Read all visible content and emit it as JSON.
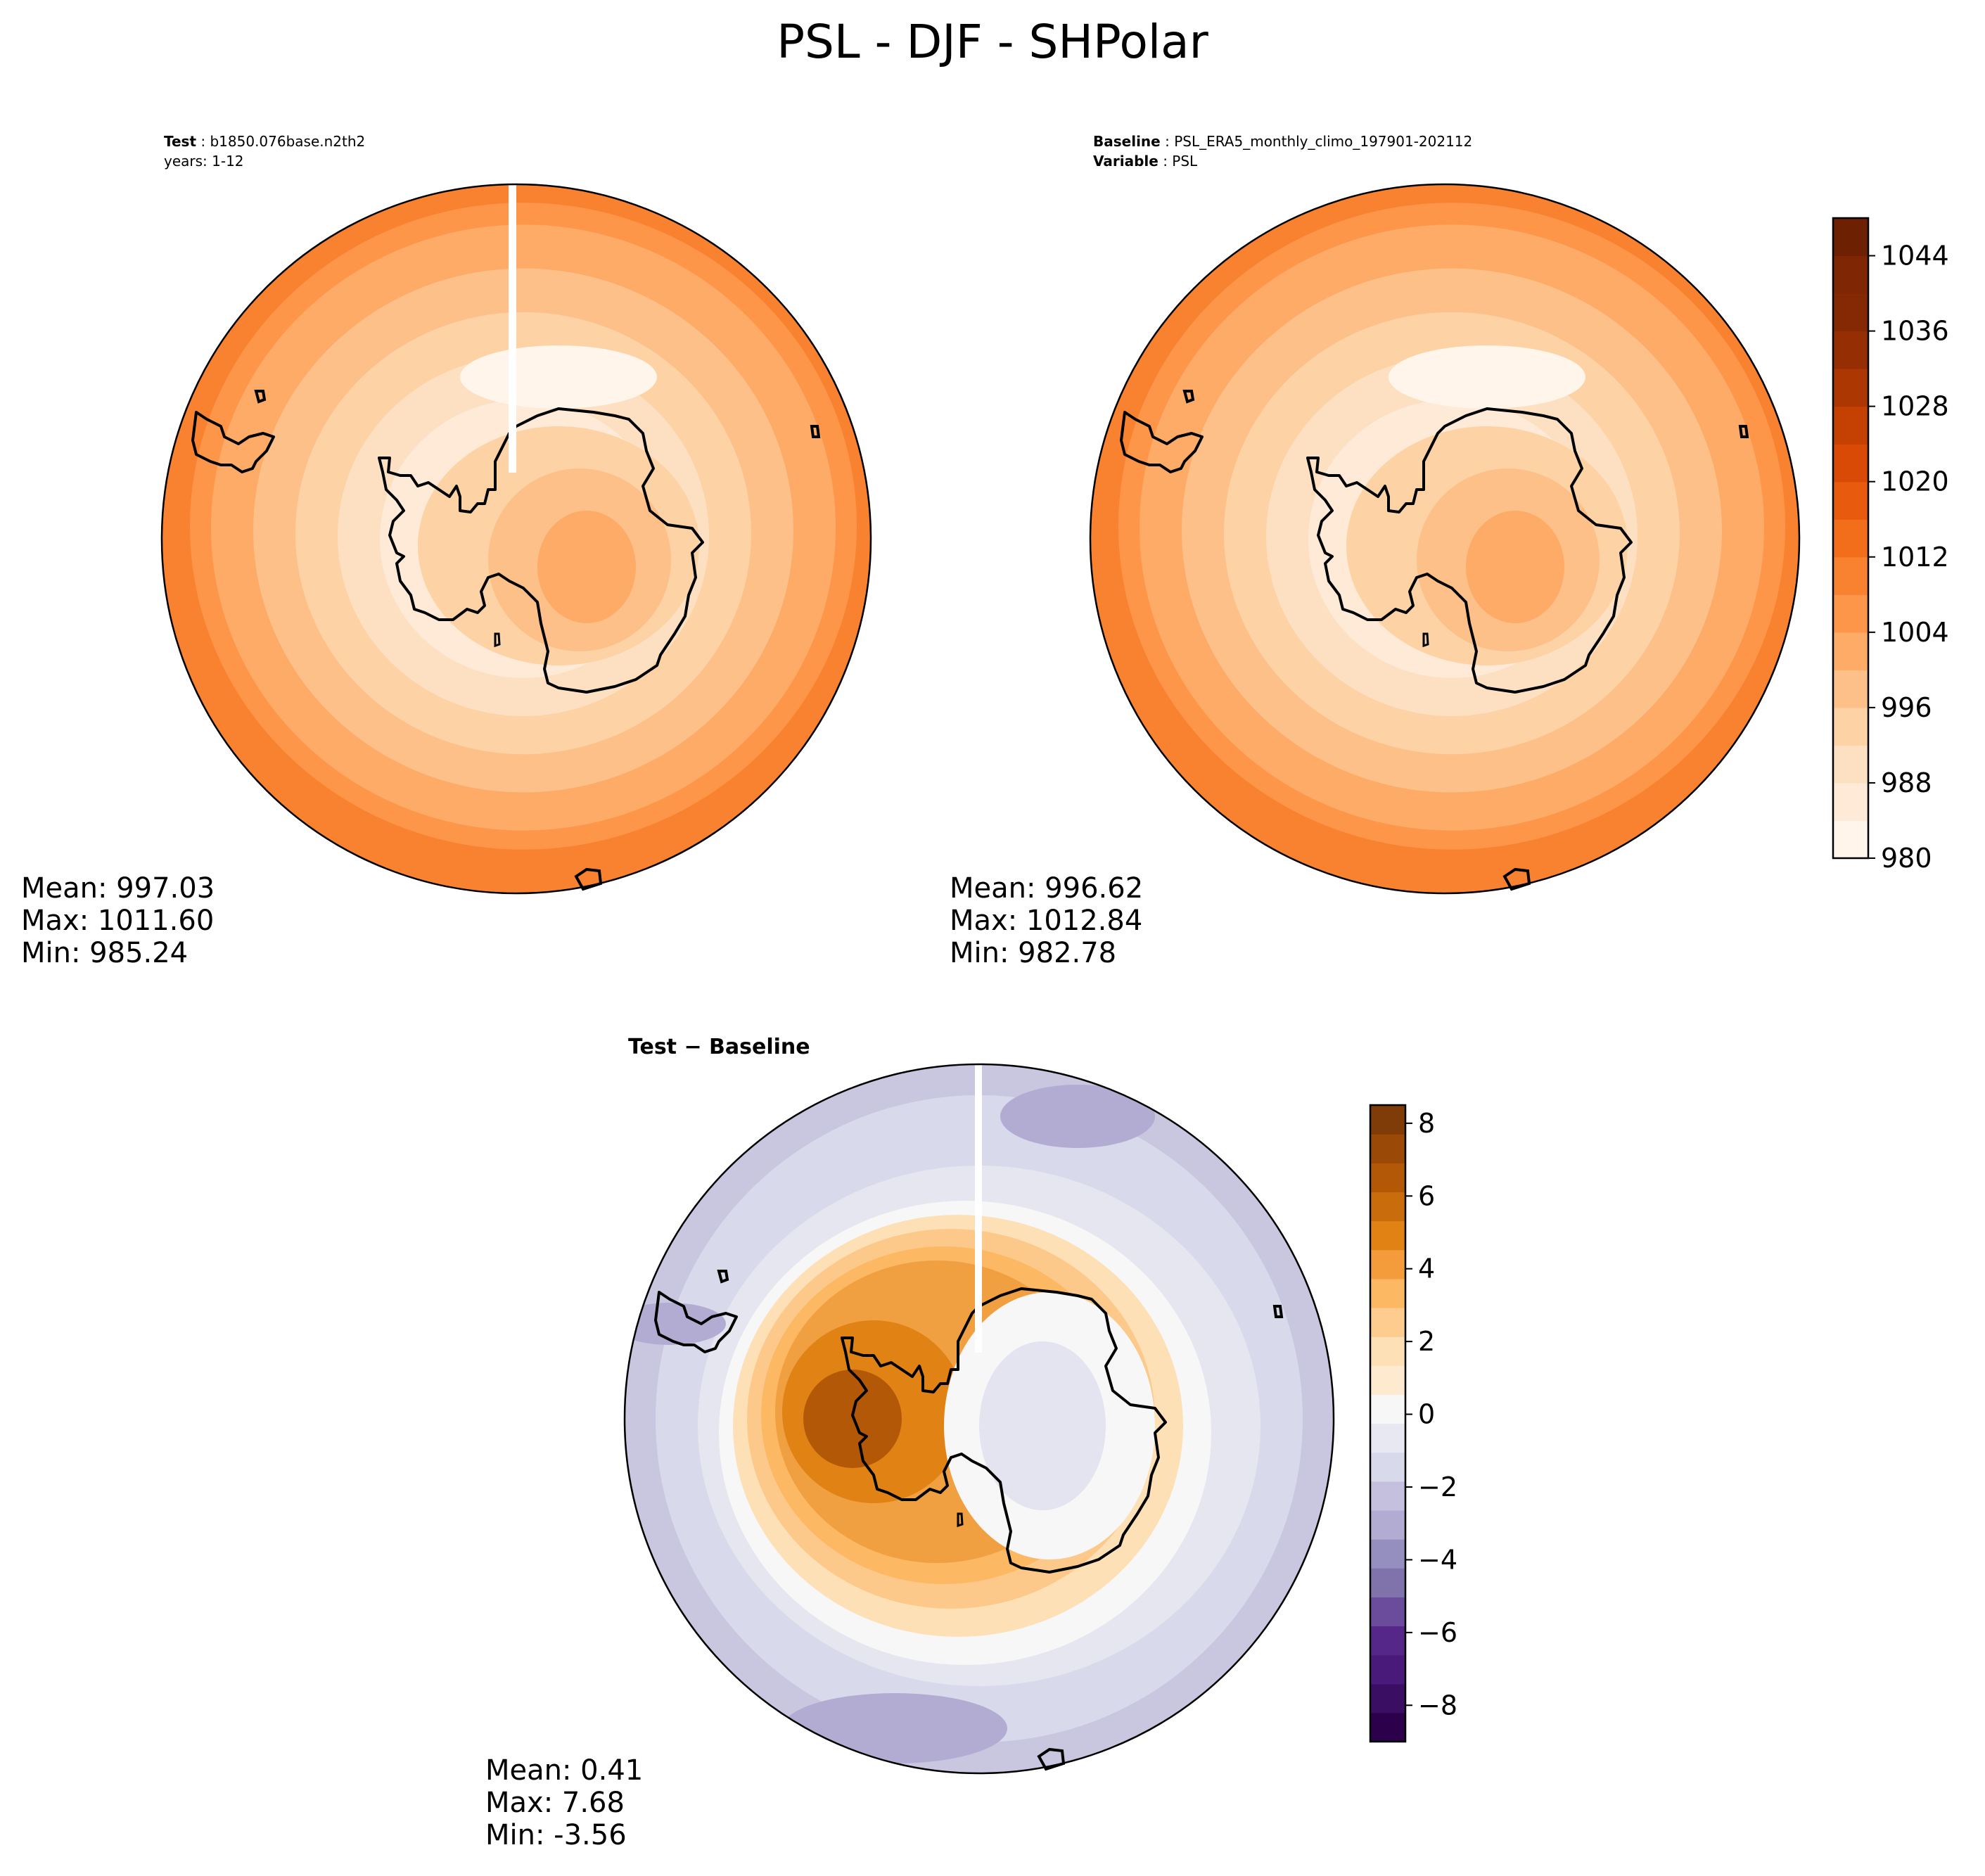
{
  "figure": {
    "title": "PSL - DJF - SHPolar"
  },
  "test_panel": {
    "label_key": "Test",
    "label_value": "b1850.076base.n2th2",
    "years": "years: 1-12",
    "stats": {
      "mean": "Mean: 997.03",
      "max": "Max: 1011.60",
      "min": "Min: 985.24"
    }
  },
  "baseline_panel": {
    "label_key": "Baseline",
    "label_value": "PSL_ERA5_monthly_climo_197901-202112",
    "variable_key": "Variable",
    "variable_value": "PSL",
    "stats": {
      "mean": "Mean: 996.62",
      "max": "Max: 1012.84",
      "min": "Min: 982.78"
    }
  },
  "diff_panel": {
    "title": "Test − Baseline",
    "stats": {
      "mean": "Mean:  0.41",
      "max": "Max:  7.68",
      "min": "Min: -3.56"
    }
  },
  "chart_data": [
    {
      "type": "heatmap",
      "panel": "test",
      "projection": "south polar stereographic",
      "colormap": "Oranges",
      "levels": [
        980,
        984,
        988,
        992,
        996,
        1000,
        1004,
        1008,
        1012,
        1016,
        1020,
        1024,
        1028,
        1032,
        1036,
        1040,
        1044,
        1048
      ],
      "mean": 997.03,
      "max": 1011.6,
      "min": 985.24
    },
    {
      "type": "heatmap",
      "panel": "baseline",
      "projection": "south polar stereographic",
      "colormap": "Oranges",
      "levels": [
        980,
        984,
        988,
        992,
        996,
        1000,
        1004,
        1008,
        1012,
        1016,
        1020,
        1024,
        1028,
        1032,
        1036,
        1040,
        1044,
        1048
      ],
      "colorbar_ticks": [
        "980",
        "988",
        "996",
        "1004",
        "1012",
        "1020",
        "1028",
        "1036",
        "1044"
      ],
      "mean": 996.62,
      "max": 1012.84,
      "min": 982.78
    },
    {
      "type": "heatmap",
      "panel": "difference",
      "projection": "south polar stereographic",
      "colormap": "PuOr_r",
      "range": [
        -9,
        8.5
      ],
      "colorbar_ticks": [
        "8",
        "6",
        "4",
        "2",
        "0",
        "−2",
        "−4",
        "−6",
        "−8"
      ],
      "mean": 0.41,
      "max": 7.68,
      "min": -3.56
    }
  ],
  "colors": {
    "oranges": [
      "#fff5eb",
      "#feead6",
      "#fde0c2",
      "#fdd2a5",
      "#fdc088",
      "#fdab67",
      "#fd9649",
      "#f98230",
      "#f36e1b",
      "#e85a0e",
      "#d84a05",
      "#c44103",
      "#ac3702",
      "#952f03",
      "#842904",
      "#7f2704",
      "#6e2003"
    ],
    "puor_r": [
      "#2d004b",
      "#542788",
      "#8073ac",
      "#b2abd2",
      "#d8daeb",
      "#f7f7f7",
      "#fee0b6",
      "#fdb863",
      "#e08214",
      "#b35806",
      "#7f3b08"
    ]
  }
}
